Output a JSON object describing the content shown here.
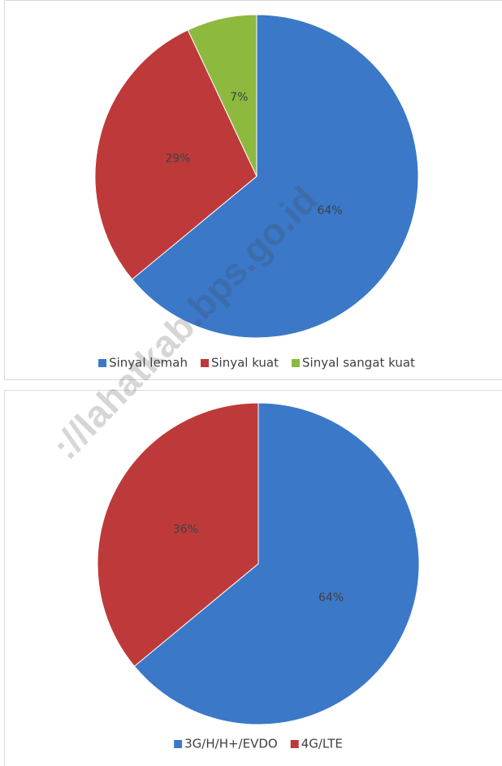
{
  "chart_data": [
    {
      "type": "pie",
      "categories": [
        "Sinyal lemah",
        "Sinyal kuat",
        "Sinyal sangat kuat"
      ],
      "values": [
        64,
        29,
        7
      ],
      "value_labels": [
        "64%",
        "29%",
        "7%"
      ],
      "colors": [
        "#3b78c8",
        "#be3a3a",
        "#8db93f"
      ],
      "legend": "bottom"
    },
    {
      "type": "pie",
      "categories": [
        "3G/H/H+/EVDO",
        "4G/LTE"
      ],
      "values": [
        64,
        36
      ],
      "value_labels": [
        "64%",
        "36%"
      ],
      "colors": [
        "#3b78c8",
        "#be3a3a"
      ],
      "legend": "bottom"
    }
  ],
  "watermark": "://lahatkab.bps.go.id"
}
